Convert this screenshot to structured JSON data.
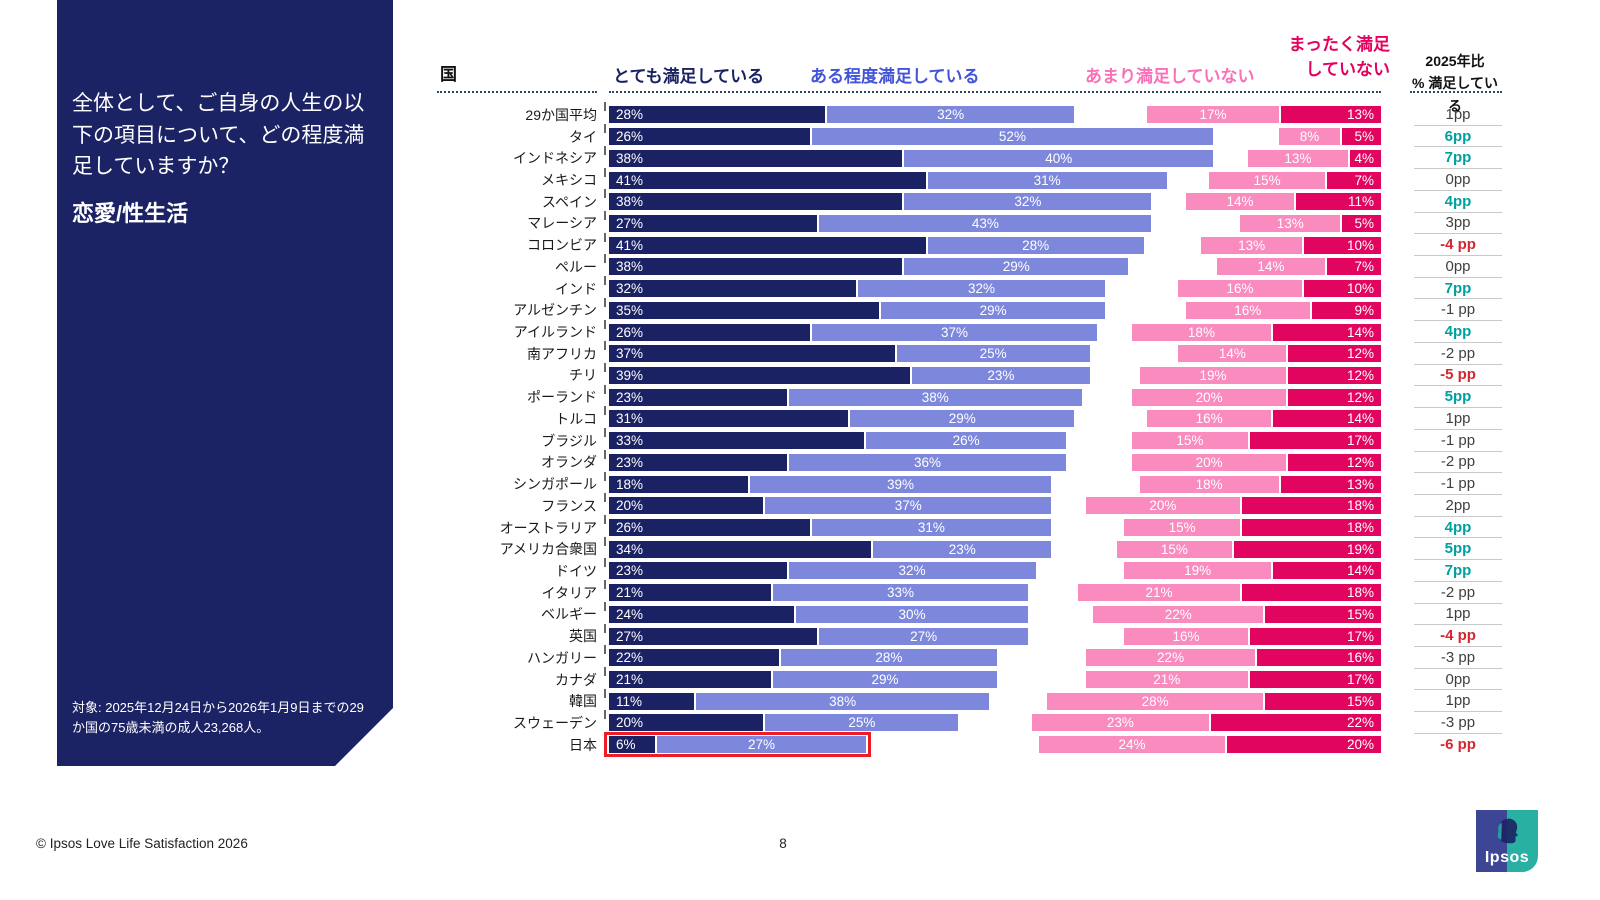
{
  "sidebar": {
    "question": "全体として、ご自身の人生の以下の項目について、どの程度満足していますか？",
    "topic": "恋愛/性生活",
    "footnote": "対象: 2025年12月24日から2026年1月9日までの29か国の75歳未満の成人23,268人。"
  },
  "header": {
    "country_col": "国",
    "legend_very": "とても満足している",
    "legend_somewhat": "ある程度満足している",
    "legend_not_very": "あまり満足していない",
    "legend_not_at_all": "まったく満足\nしていない",
    "change_col": "2025年比\n% 満足している"
  },
  "chart_data": {
    "type": "bar",
    "orientation": "horizontal",
    "stacked": true,
    "x_range_percent": [
      0,
      100
    ],
    "note": "positive segments left-aligned at 0%, negative segments right-aligned at 100%",
    "categories": [
      "29か国平均",
      "タイ",
      "インドネシア",
      "メキシコ",
      "スペイン",
      "マレーシア",
      "コロンビア",
      "ペルー",
      "インド",
      "アルゼンチン",
      "アイルランド",
      "南アフリカ",
      "チリ",
      "ポーランド",
      "トルコ",
      "ブラジル",
      "オランダ",
      "シンガポール",
      "フランス",
      "オーストラリア",
      "アメリカ合衆国",
      "ドイツ",
      "イタリア",
      "ベルギー",
      "英国",
      "ハンガリー",
      "カナダ",
      "韓国",
      "スウェーデン",
      "日本"
    ],
    "series": [
      {
        "name": "とても満足している",
        "values": [
          28,
          26,
          38,
          41,
          38,
          27,
          41,
          38,
          32,
          35,
          26,
          37,
          39,
          23,
          31,
          33,
          23,
          18,
          20,
          26,
          34,
          23,
          21,
          24,
          27,
          22,
          21,
          11,
          20,
          6
        ]
      },
      {
        "name": "ある程度満足している",
        "values": [
          32,
          52,
          40,
          31,
          32,
          43,
          28,
          29,
          32,
          29,
          37,
          25,
          23,
          38,
          29,
          26,
          36,
          39,
          37,
          31,
          23,
          32,
          33,
          30,
          27,
          28,
          29,
          38,
          25,
          27
        ]
      },
      {
        "name": "あまり満足していない",
        "values": [
          17,
          8,
          13,
          15,
          14,
          13,
          13,
          14,
          16,
          16,
          18,
          14,
          19,
          20,
          16,
          15,
          20,
          18,
          20,
          15,
          15,
          19,
          21,
          22,
          16,
          22,
          21,
          28,
          23,
          24
        ]
      },
      {
        "name": "まったく満足していない",
        "values": [
          13,
          5,
          4,
          7,
          11,
          5,
          10,
          7,
          10,
          9,
          14,
          12,
          12,
          12,
          14,
          17,
          12,
          13,
          18,
          18,
          19,
          14,
          18,
          15,
          17,
          16,
          17,
          15,
          22,
          20
        ]
      }
    ],
    "change_vs_2025": [
      {
        "label": "1pp",
        "trend": "neutral"
      },
      {
        "label": "6pp",
        "trend": "positive"
      },
      {
        "label": "7pp",
        "trend": "positive"
      },
      {
        "label": "0pp",
        "trend": "neutral"
      },
      {
        "label": "4pp",
        "trend": "positive"
      },
      {
        "label": "3pp",
        "trend": "neutral"
      },
      {
        "label": "-4 pp",
        "trend": "negative"
      },
      {
        "label": "0pp",
        "trend": "neutral"
      },
      {
        "label": "7pp",
        "trend": "positive"
      },
      {
        "label": "-1 pp",
        "trend": "neutral"
      },
      {
        "label": "4pp",
        "trend": "positive"
      },
      {
        "label": "-2 pp",
        "trend": "neutral"
      },
      {
        "label": "-5 pp",
        "trend": "negative"
      },
      {
        "label": "5pp",
        "trend": "positive"
      },
      {
        "label": "1pp",
        "trend": "neutral"
      },
      {
        "label": "-1 pp",
        "trend": "neutral"
      },
      {
        "label": "-2 pp",
        "trend": "neutral"
      },
      {
        "label": "-1 pp",
        "trend": "neutral"
      },
      {
        "label": "2pp",
        "trend": "neutral"
      },
      {
        "label": "4pp",
        "trend": "positive"
      },
      {
        "label": "5pp",
        "trend": "positive"
      },
      {
        "label": "7pp",
        "trend": "positive"
      },
      {
        "label": "-2 pp",
        "trend": "neutral"
      },
      {
        "label": "1pp",
        "trend": "neutral"
      },
      {
        "label": "-4 pp",
        "trend": "negative"
      },
      {
        "label": "-3 pp",
        "trend": "neutral"
      },
      {
        "label": "0pp",
        "trend": "neutral"
      },
      {
        "label": "1pp",
        "trend": "neutral"
      },
      {
        "label": "-3 pp",
        "trend": "neutral"
      },
      {
        "label": "-6 pp",
        "trend": "negative"
      }
    ],
    "highlighted_category": "日本"
  },
  "footer": {
    "copyright": "© Ipsos Love Life Satisfaction 2026",
    "page_number": "8"
  },
  "logo": {
    "word": "Ipsos"
  },
  "colors": {
    "sidebar_bg": "#1C2365",
    "very_satisfied": "#1B2264",
    "somewhat_satisfied": "#7D88DD",
    "not_very_satisfied": "#F98BBE",
    "not_at_all_satisfied": "#E10560",
    "header_somewhat": "#4353D9",
    "header_not_very": "#FA70B8",
    "header_not_at_all": "#E5005F",
    "positive_change": "#00A0A0",
    "negative_change": "#D22730",
    "neutral_change": "#3F3F3F",
    "highlight_box": "#EE1C25",
    "logo_blue": "#3D4595",
    "logo_teal": "#28B0A3"
  }
}
